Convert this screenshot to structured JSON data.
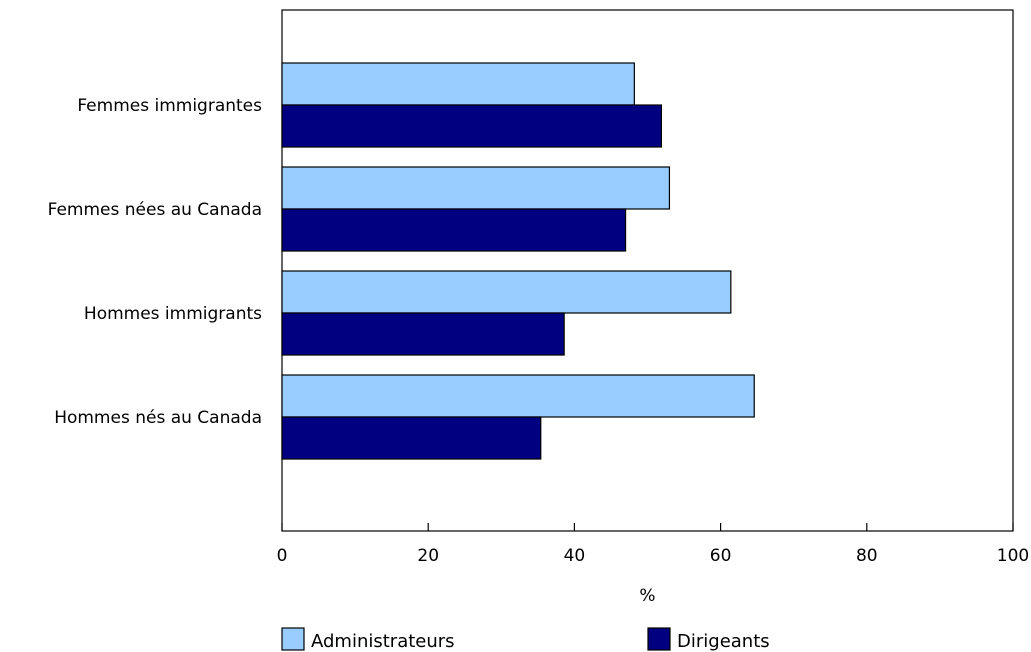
{
  "chart_data": {
    "type": "bar",
    "orientation": "horizontal",
    "categories": [
      "Femmes immigrantes",
      "Femmes nées au Canada",
      "Hommes immigrants",
      "Hommes nés au Canada"
    ],
    "series": [
      {
        "name": "Administrateurs",
        "color": "#99ccff",
        "values": [
          48.2,
          53.0,
          61.4,
          64.6
        ]
      },
      {
        "name": "Dirigeants",
        "color": "#000080",
        "values": [
          51.9,
          47.0,
          38.6,
          35.4
        ]
      }
    ],
    "xlabel": "%",
    "xlim": [
      0,
      100
    ],
    "xticks": [
      0,
      20,
      40,
      60,
      80,
      100
    ],
    "grid": false,
    "legend": "bottom"
  }
}
